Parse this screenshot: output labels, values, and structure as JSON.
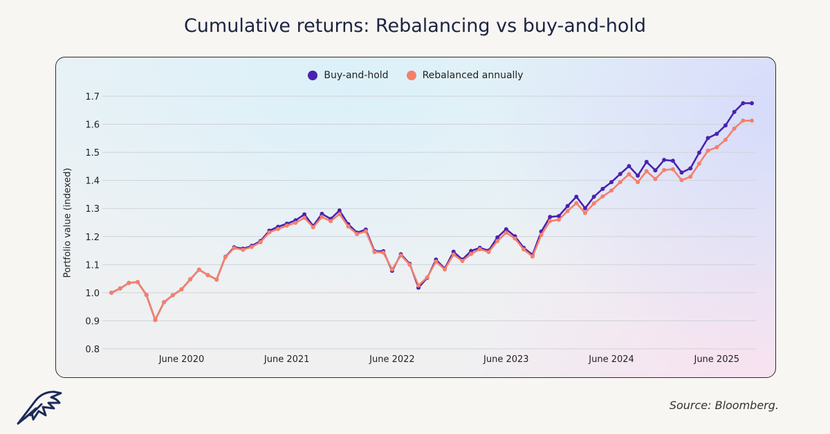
{
  "chart_data": {
    "type": "line",
    "title": "Cumulative returns: Rebalancing vs buy-and-hold",
    "xlabel": "",
    "ylabel": "Portfolio value (indexed)",
    "ylim": [
      0.8,
      1.7
    ],
    "yticks": [
      "0.8",
      "0.9",
      "1.0",
      "1.1",
      "1.2",
      "1.3",
      "1.4",
      "1.5",
      "1.6",
      "1.7"
    ],
    "xticks": [
      {
        "label": "June 2020",
        "index": 8
      },
      {
        "label": "June 2021",
        "index": 20
      },
      {
        "label": "June 2022",
        "index": 32
      },
      {
        "label": "June 2023",
        "index": 45
      },
      {
        "label": "June 2024",
        "index": 57
      },
      {
        "label": "June 2025",
        "index": 69
      }
    ],
    "legend_position": "top-center",
    "grid": true,
    "series": [
      {
        "name": "Buy-and-hold",
        "color": "#4a22b0",
        "values": [
          1.0,
          1.015,
          1.035,
          1.038,
          0.992,
          0.903,
          0.966,
          0.991,
          1.012,
          1.048,
          1.082,
          1.063,
          1.047,
          1.128,
          1.162,
          1.157,
          1.167,
          1.184,
          1.221,
          1.235,
          1.246,
          1.258,
          1.279,
          1.238,
          1.281,
          1.263,
          1.293,
          1.244,
          1.214,
          1.225,
          1.148,
          1.148,
          1.078,
          1.137,
          1.103,
          1.018,
          1.053,
          1.118,
          1.086,
          1.146,
          1.118,
          1.149,
          1.16,
          1.15,
          1.197,
          1.226,
          1.201,
          1.16,
          1.135,
          1.218,
          1.27,
          1.273,
          1.309,
          1.342,
          1.301,
          1.342,
          1.37,
          1.394,
          1.423,
          1.451,
          1.417,
          1.466,
          1.436,
          1.473,
          1.47,
          1.428,
          1.443,
          1.499,
          1.551,
          1.566,
          1.596,
          1.644,
          1.675,
          1.675
        ]
      },
      {
        "name": "Rebalanced annually",
        "color": "#f4806b",
        "values": [
          1.0,
          1.015,
          1.035,
          1.038,
          0.992,
          0.903,
          0.966,
          0.991,
          1.012,
          1.048,
          1.082,
          1.063,
          1.047,
          1.127,
          1.159,
          1.153,
          1.163,
          1.18,
          1.215,
          1.227,
          1.239,
          1.249,
          1.267,
          1.233,
          1.27,
          1.255,
          1.28,
          1.236,
          1.209,
          1.219,
          1.145,
          1.143,
          1.083,
          1.133,
          1.1,
          1.026,
          1.055,
          1.111,
          1.083,
          1.136,
          1.113,
          1.138,
          1.155,
          1.145,
          1.184,
          1.214,
          1.193,
          1.154,
          1.129,
          1.206,
          1.255,
          1.26,
          1.291,
          1.319,
          1.284,
          1.318,
          1.343,
          1.364,
          1.394,
          1.422,
          1.394,
          1.433,
          1.405,
          1.437,
          1.44,
          1.401,
          1.413,
          1.46,
          1.506,
          1.518,
          1.545,
          1.585,
          1.613,
          1.613
        ]
      }
    ]
  },
  "source_text": "Source: Bloomberg."
}
